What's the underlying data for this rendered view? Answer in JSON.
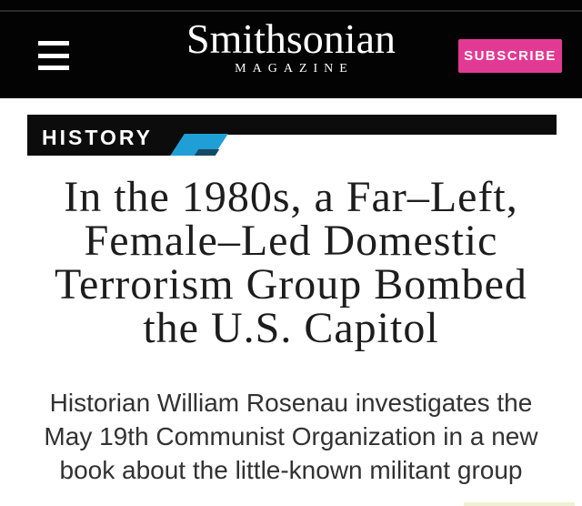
{
  "header": {
    "menu": {
      "icon": "hamburger-icon"
    },
    "logo": {
      "title": "Smithsonian",
      "subtitle": "MAGAZINE"
    },
    "subscribe": {
      "label": "SUBSCRIBE",
      "color": "#e23a94"
    }
  },
  "section_banner": {
    "label": "HISTORY",
    "accent_blue": "#209fd6",
    "accent_navy": "#154a66",
    "bar_black": "#0c0c0c"
  },
  "article": {
    "title_lines": [
      "In the 1980s, a Far–Left,",
      "Female–Led Domestic",
      "Terrorism Group Bombed",
      "the U.S. Capitol"
    ],
    "dek_lines": [
      "Historian William Rosenau investigates the",
      "May 19th Communist Organization in a new",
      "book about the little-known militant group"
    ]
  }
}
